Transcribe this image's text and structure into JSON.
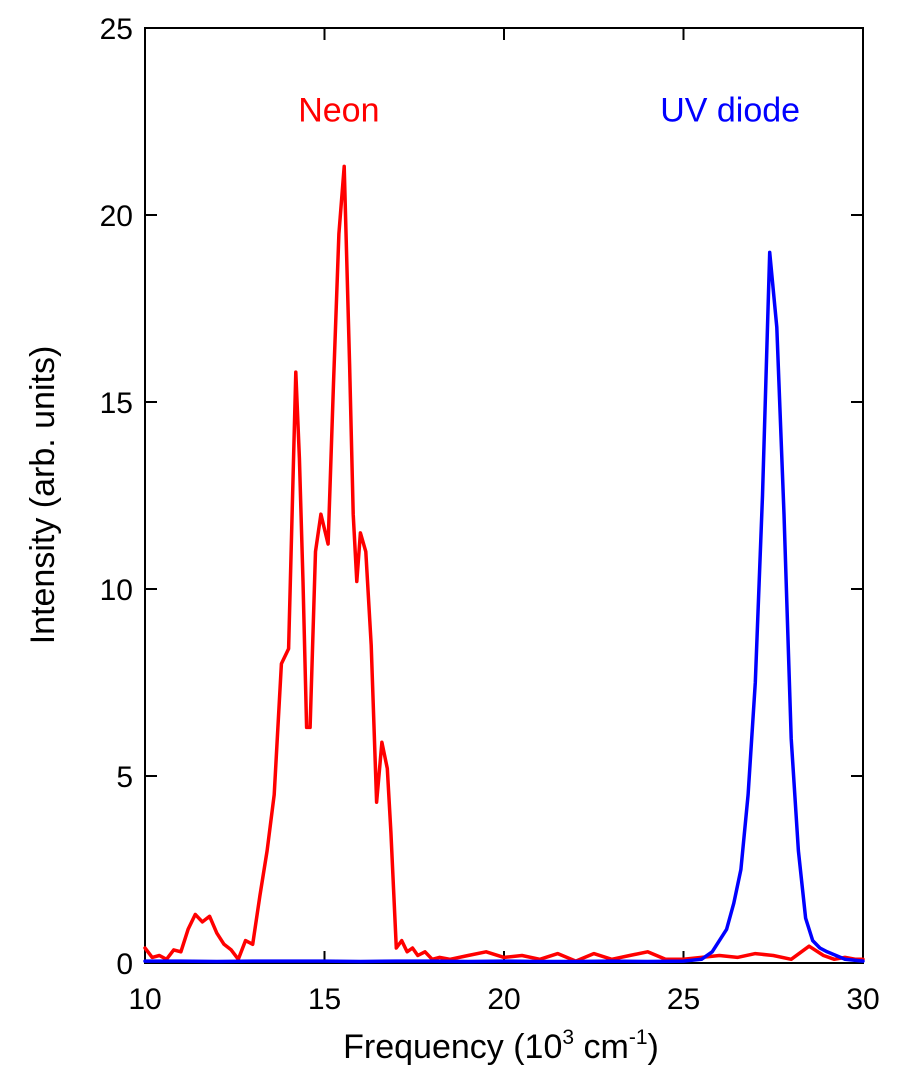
{
  "chart_data": {
    "type": "line",
    "xlabel": "Frequency (10",
    "xlabel_sup1": "3",
    "xlabel_mid": " cm",
    "xlabel_sup2": "-1",
    "xlabel_end": ")",
    "ylabel": "Intensity (arb. units)",
    "xlim": [
      10,
      30
    ],
    "ylim": [
      0,
      25
    ],
    "x_ticks": [
      "10",
      "15",
      "20",
      "25",
      "30"
    ],
    "y_ticks": [
      "0",
      "5",
      "10",
      "15",
      "20",
      "25"
    ],
    "grid": false,
    "series": [
      {
        "name": "Neon",
        "color": "#ff0000",
        "x": [
          10.0,
          10.2,
          10.4,
          10.6,
          10.8,
          11.0,
          11.2,
          11.4,
          11.6,
          11.8,
          12.0,
          12.2,
          12.4,
          12.6,
          12.8,
          13.0,
          13.2,
          13.4,
          13.6,
          13.8,
          14.0,
          14.2,
          14.3,
          14.4,
          14.5,
          14.6,
          14.75,
          14.9,
          15.1,
          15.25,
          15.4,
          15.55,
          15.7,
          15.8,
          15.9,
          16.0,
          16.15,
          16.3,
          16.45,
          16.6,
          16.75,
          16.85,
          17.0,
          17.15,
          17.3,
          17.45,
          17.6,
          17.8,
          18.0,
          18.2,
          18.5,
          19.0,
          19.5,
          20.0,
          20.5,
          21.0,
          21.5,
          22.0,
          22.5,
          23.0,
          23.5,
          24.0,
          24.5,
          25.0,
          25.5,
          26.0,
          26.5,
          27.0,
          27.5,
          28.0,
          28.5,
          28.9,
          29.2,
          29.5,
          29.8,
          30.0
        ],
        "values": [
          0.4,
          0.15,
          0.2,
          0.1,
          0.35,
          0.3,
          0.9,
          1.3,
          1.1,
          1.25,
          0.8,
          0.5,
          0.35,
          0.1,
          0.6,
          0.5,
          1.8,
          3.0,
          4.5,
          8.0,
          8.4,
          15.8,
          13.5,
          10.2,
          6.3,
          6.3,
          11.0,
          12.0,
          11.2,
          15.5,
          19.5,
          21.3,
          16.0,
          12.0,
          10.2,
          11.5,
          11.0,
          8.5,
          4.3,
          5.9,
          5.2,
          3.5,
          0.4,
          0.6,
          0.3,
          0.4,
          0.2,
          0.3,
          0.1,
          0.15,
          0.1,
          0.2,
          0.3,
          0.15,
          0.2,
          0.1,
          0.25,
          0.05,
          0.25,
          0.1,
          0.2,
          0.3,
          0.1,
          0.1,
          0.15,
          0.2,
          0.15,
          0.25,
          0.2,
          0.1,
          0.45,
          0.2,
          0.1,
          0.15,
          0.1,
          0.1
        ]
      },
      {
        "name": "UV diode",
        "color": "#0000ff",
        "x": [
          10.0,
          11.0,
          12.0,
          13.0,
          14.0,
          15.0,
          16.0,
          17.0,
          18.0,
          19.0,
          20.0,
          21.0,
          22.0,
          23.0,
          24.0,
          25.0,
          25.5,
          25.8,
          26.0,
          26.2,
          26.4,
          26.6,
          26.8,
          27.0,
          27.2,
          27.4,
          27.6,
          27.8,
          28.0,
          28.2,
          28.4,
          28.6,
          28.8,
          29.0,
          29.5,
          30.0
        ],
        "values": [
          0.05,
          0.05,
          0.04,
          0.05,
          0.05,
          0.05,
          0.04,
          0.05,
          0.05,
          0.04,
          0.05,
          0.04,
          0.04,
          0.05,
          0.04,
          0.05,
          0.1,
          0.3,
          0.6,
          0.9,
          1.6,
          2.5,
          4.5,
          7.5,
          12.5,
          19.0,
          17.0,
          12.0,
          6.0,
          3.0,
          1.2,
          0.6,
          0.4,
          0.3,
          0.1,
          0.05
        ]
      }
    ],
    "annotations": [
      {
        "text": "Neon",
        "color": "#ff0000",
        "x": 15.4,
        "y": 22.5
      },
      {
        "text": "UV diode",
        "color": "#0000ff",
        "x": 26.3,
        "y": 22.5
      }
    ]
  }
}
